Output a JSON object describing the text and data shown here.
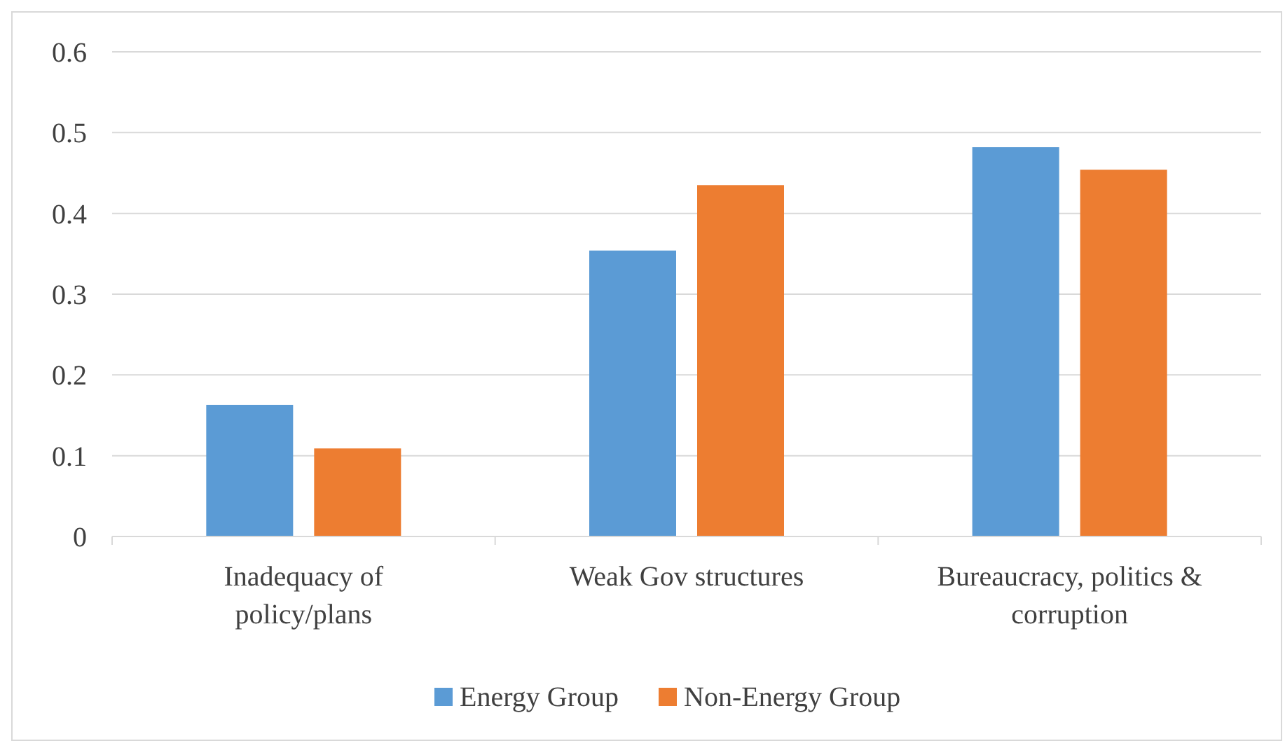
{
  "chart_data": {
    "type": "bar",
    "categories": [
      "Inadequacy of policy/plans",
      "Weak Gov structures",
      "Bureaucracy, politics & corruption"
    ],
    "series": [
      {
        "name": "Energy Group",
        "color": "#5b9bd5",
        "values": [
          0.163,
          0.354,
          0.482
        ]
      },
      {
        "name": "Non-Energy Group",
        "color": "#ed7d31",
        "values": [
          0.109,
          0.435,
          0.454
        ]
      }
    ],
    "ylim": [
      0,
      0.6
    ],
    "yticks": [
      0,
      0.1,
      0.2,
      0.3,
      0.4,
      0.5,
      0.6
    ],
    "grid": "y",
    "legend": "bottom"
  }
}
